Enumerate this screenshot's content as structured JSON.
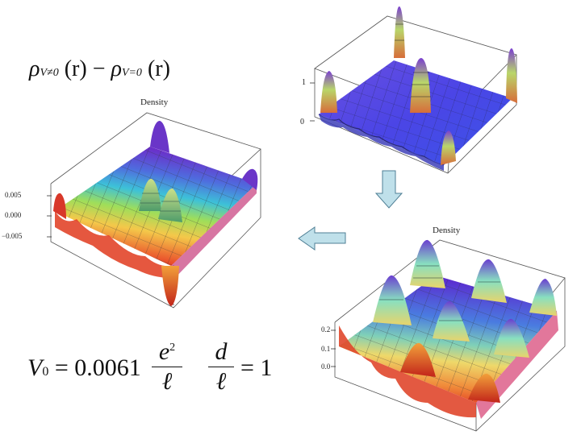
{
  "formula_top": {
    "rho": "ρ",
    "sub_a": "V≠0",
    "arg_a": "(r)",
    "minus": "−",
    "sub_b": "V=0",
    "arg_b": "(r)"
  },
  "formula_bottom": {
    "v": "V",
    "v_sub": "0",
    "equals": "=",
    "coef": "0.0061",
    "num_e": "e",
    "num_exp": "2",
    "den_l": "ℓ",
    "d": "d",
    "den_l2": "ℓ",
    "equals2": "=",
    "one": "1"
  },
  "plots": {
    "top_right": {
      "ticks": [
        "1",
        "0"
      ]
    },
    "left": {
      "title": "Density",
      "ticks": [
        "0.005",
        "0.000",
        "−0.005"
      ]
    },
    "bottom_right": {
      "title": "Density",
      "ticks": [
        "0.2",
        "0.1",
        "0.0"
      ]
    }
  },
  "colors": {
    "arrow_fill": "#bfe0ea",
    "arrow_stroke": "#4f7f95"
  }
}
